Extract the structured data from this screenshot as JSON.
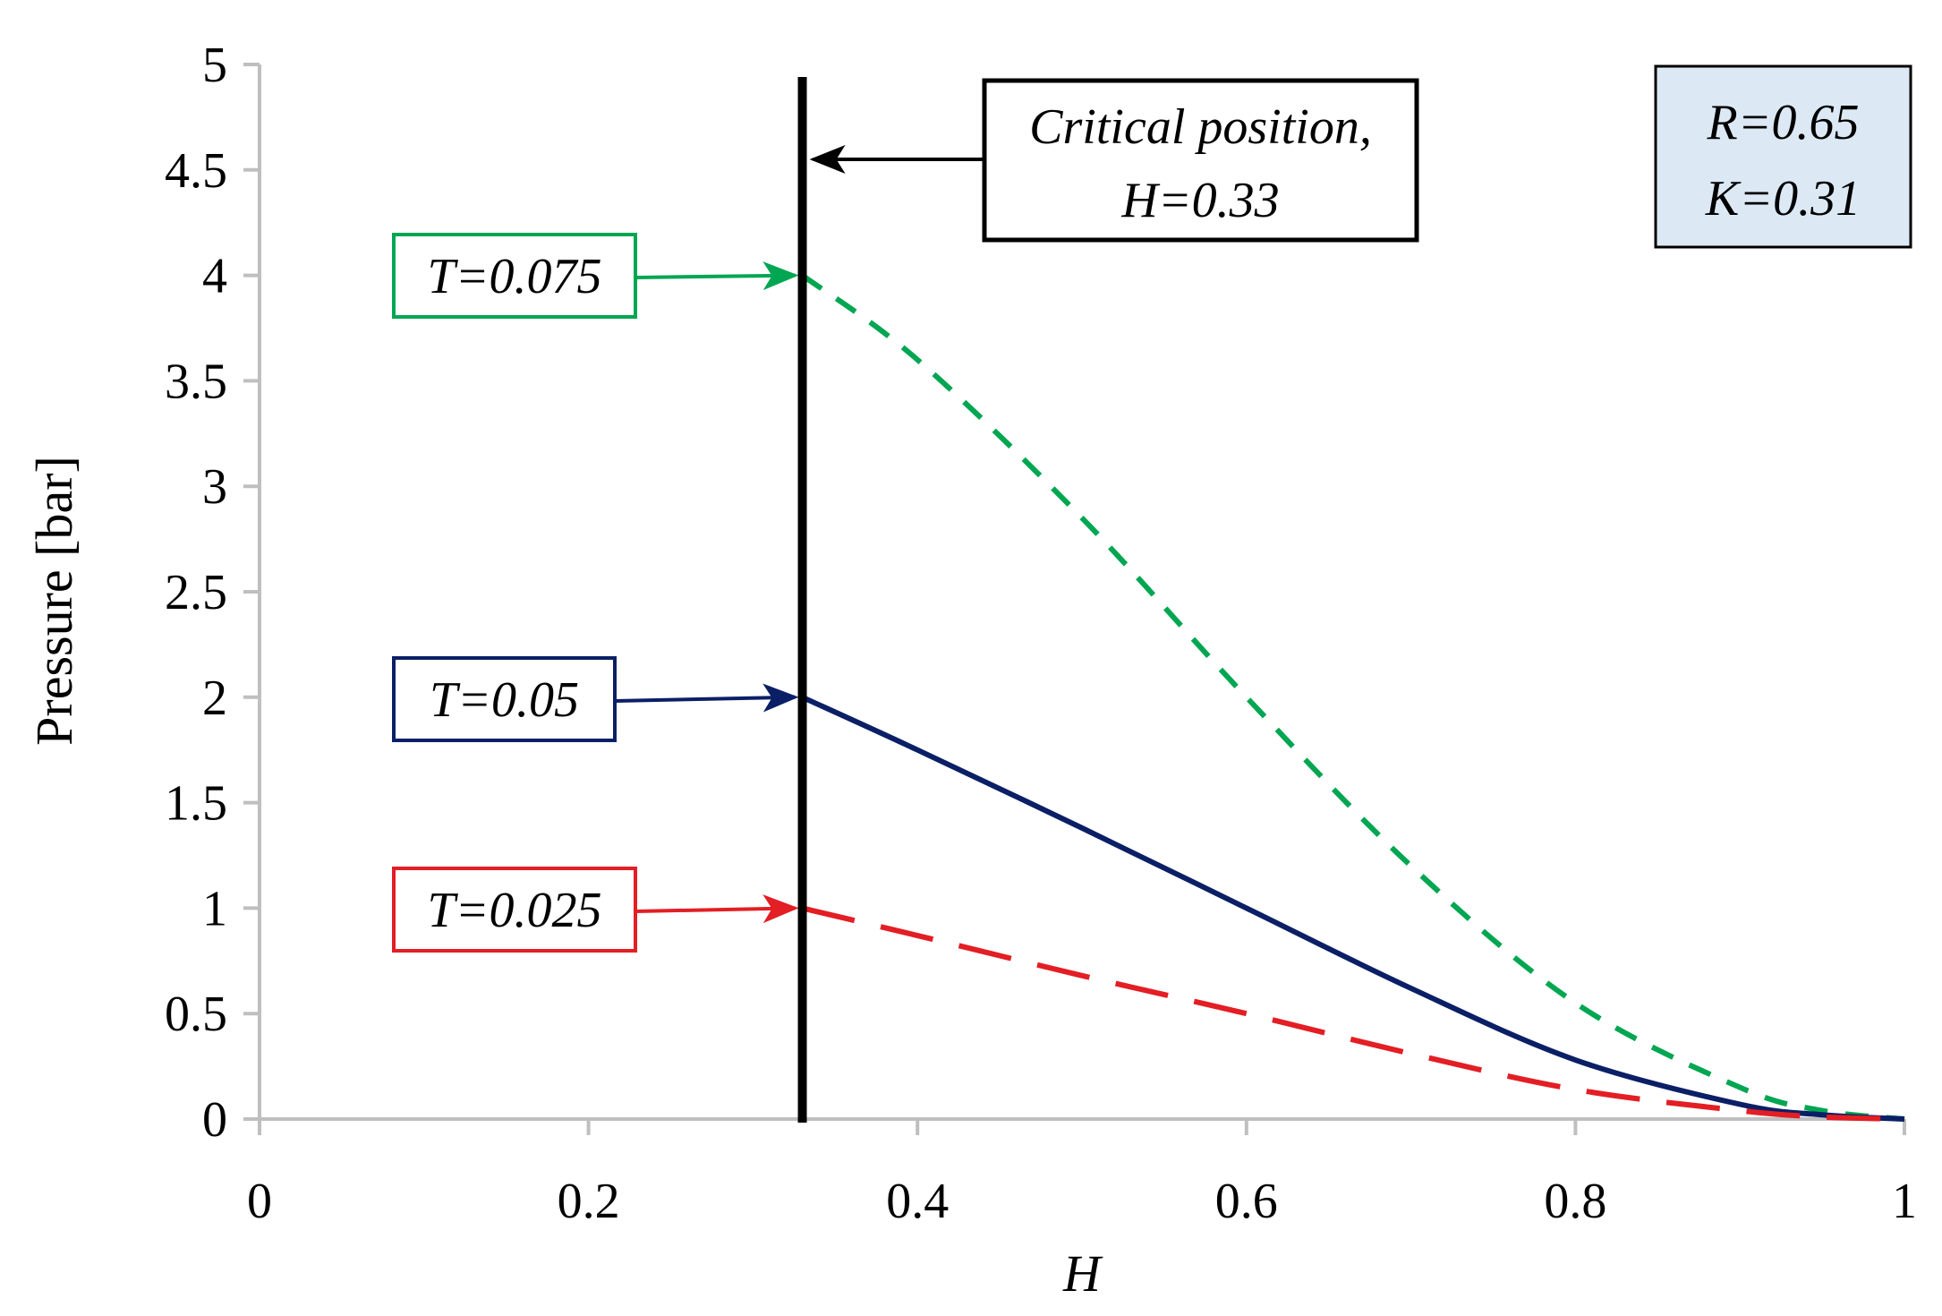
{
  "chart_data": {
    "type": "line",
    "title": "",
    "xlabel": "H",
    "ylabel": "Pressure [bar]",
    "xlim": [
      0,
      1
    ],
    "ylim": [
      0,
      5
    ],
    "x_ticks": [
      "0",
      "0.2",
      "0.4",
      "0.6",
      "0.8",
      "1"
    ],
    "y_ticks": [
      "0",
      "0.5",
      "1",
      "1.5",
      "2",
      "2.5",
      "3",
      "3.5",
      "4",
      "4.5",
      "5"
    ],
    "grid": false,
    "series": [
      {
        "name": "T=0.075",
        "color": "#00A651",
        "style": "dashed",
        "x": [
          0.33,
          0.4,
          0.5,
          0.6,
          0.7,
          0.8,
          0.9,
          0.95,
          1.0
        ],
        "y": [
          4.0,
          3.6,
          2.85,
          2.0,
          1.2,
          0.55,
          0.15,
          0.04,
          0.0
        ]
      },
      {
        "name": "T=0.05",
        "color": "#0B1F66",
        "style": "solid",
        "x": [
          0.33,
          0.4,
          0.5,
          0.6,
          0.7,
          0.8,
          0.9,
          0.95,
          1.0
        ],
        "y": [
          2.0,
          1.75,
          1.38,
          1.0,
          0.62,
          0.28,
          0.07,
          0.02,
          0.0
        ]
      },
      {
        "name": "T=0.025",
        "color": "#E31E24",
        "style": "long-dashed",
        "x": [
          0.33,
          0.4,
          0.5,
          0.6,
          0.7,
          0.8,
          0.9,
          0.95,
          1.0
        ],
        "y": [
          1.0,
          0.87,
          0.68,
          0.5,
          0.31,
          0.14,
          0.04,
          0.01,
          0.0
        ]
      }
    ],
    "critical_line": {
      "x": 0.33,
      "label_line1": "Critical position,",
      "label_line2": "H=0.33"
    },
    "params_box": {
      "line1": "R=0.65",
      "line2": "K=0.31"
    }
  }
}
